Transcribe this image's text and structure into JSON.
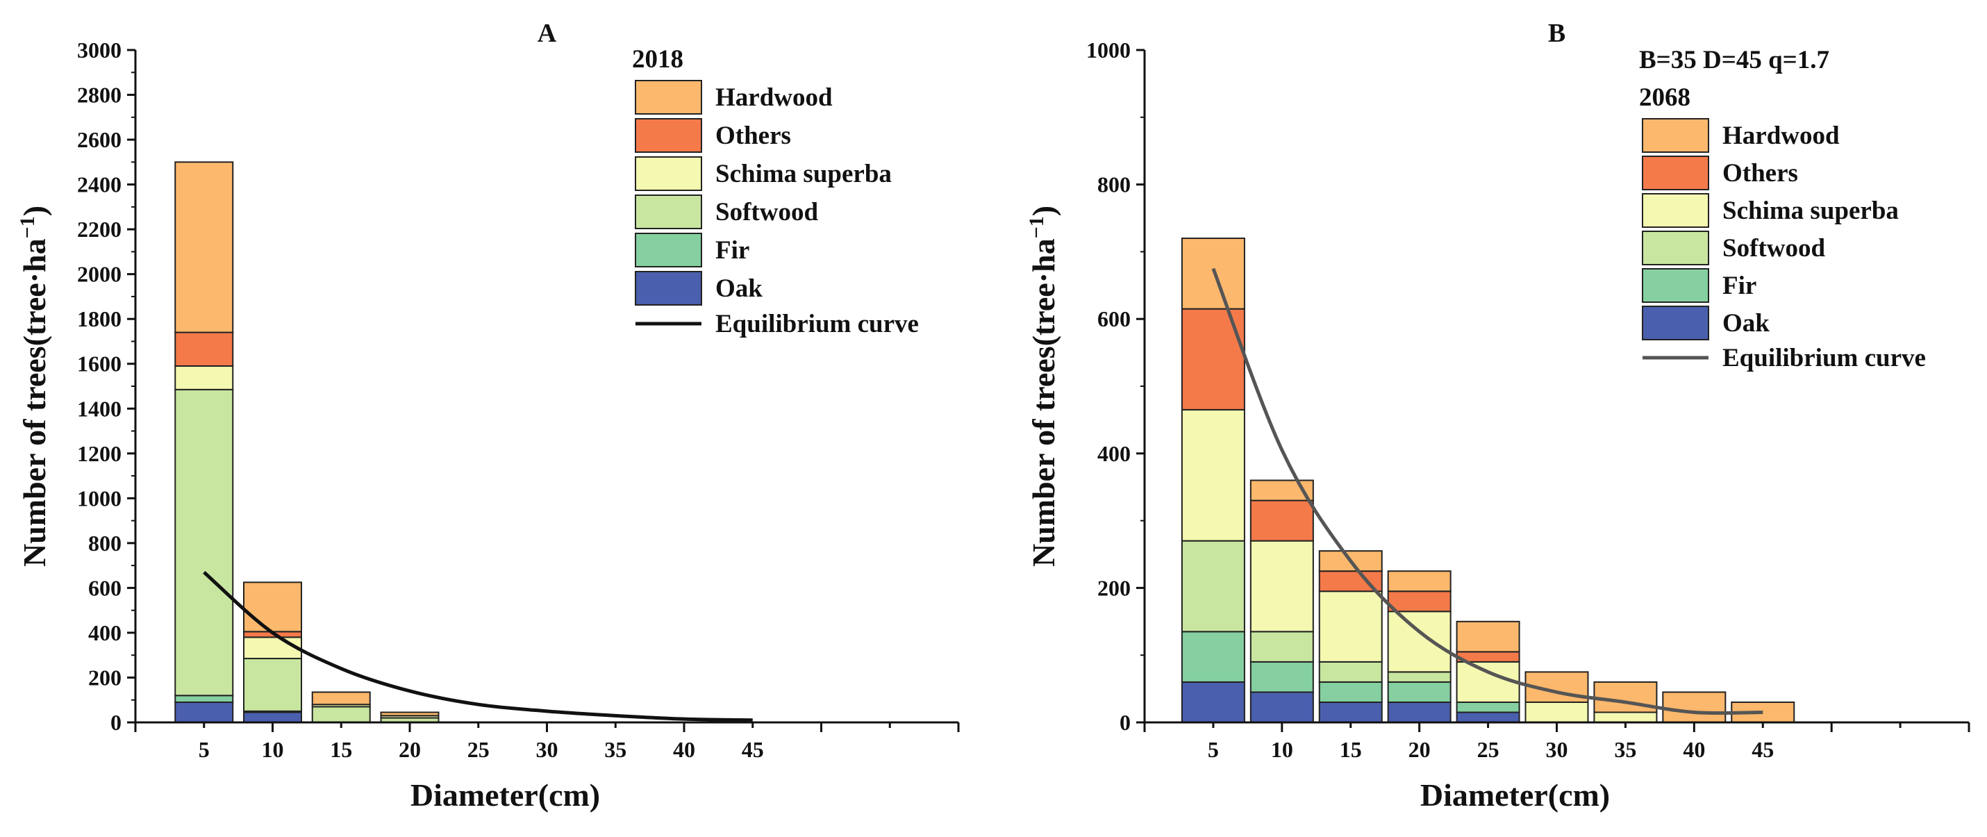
{
  "chart_data": [
    {
      "type": "bar",
      "stacked": true,
      "panel_label": "A",
      "legend_title": "2018",
      "params": "",
      "xlabel": "Diameter(cm)",
      "ylabel_main": "Number of trees(tree·ha",
      "ylabel_sup": "−1",
      "ylabel_end": ")",
      "ylim": [
        0,
        3000
      ],
      "yticks": [
        0,
        200,
        400,
        600,
        800,
        1000,
        1200,
        1400,
        1600,
        1800,
        2000,
        2200,
        2400,
        2600,
        2800,
        3000
      ],
      "xlim": [
        0,
        60
      ],
      "xticks": [
        5,
        10,
        15,
        20,
        25,
        30,
        35,
        40,
        45
      ],
      "categories": [
        5,
        10,
        15,
        20
      ],
      "series": [
        {
          "name": "Oak",
          "color": "#4a5fad",
          "values": [
            90,
            45,
            0,
            0
          ]
        },
        {
          "name": "Fir",
          "color": "#85cfa0",
          "values": [
            30,
            5,
            0,
            0
          ]
        },
        {
          "name": "Softwood",
          "color": "#c8e6a0",
          "values": [
            1365,
            235,
            70,
            20
          ]
        },
        {
          "name": "Schima superba",
          "color": "#f4f8b0",
          "values": [
            105,
            95,
            10,
            10
          ]
        },
        {
          "name": "Others",
          "color": "#f47a4a",
          "values": [
            150,
            25,
            0,
            0
          ]
        },
        {
          "name": "Hardwood",
          "color": "#fcb86c",
          "values": [
            760,
            220,
            55,
            15
          ]
        }
      ],
      "equilibrium_curve": {
        "name": "Equilibrium curve",
        "color": "#111111",
        "x": [
          5,
          10,
          15,
          20,
          25,
          30,
          35,
          40,
          45
        ],
        "y": [
          670,
          400,
          240,
          140,
          80,
          50,
          30,
          15,
          10
        ]
      }
    },
    {
      "type": "bar",
      "stacked": true,
      "panel_label": "B",
      "legend_title": "2068",
      "params": "B=35 D=45 q=1.7",
      "xlabel": "Diameter(cm)",
      "ylabel_main": "Number of trees(tree·ha",
      "ylabel_sup": "−1",
      "ylabel_end": ")",
      "ylim": [
        0,
        1000
      ],
      "yticks": [
        0,
        200,
        400,
        600,
        800,
        1000
      ],
      "xlim": [
        0,
        60
      ],
      "xticks": [
        5,
        10,
        15,
        20,
        25,
        30,
        35,
        40,
        45
      ],
      "categories": [
        5,
        10,
        15,
        20,
        25,
        30,
        35,
        40,
        45
      ],
      "series": [
        {
          "name": "Oak",
          "color": "#4a5fad",
          "values": [
            60,
            45,
            30,
            30,
            15,
            0,
            0,
            0,
            0
          ]
        },
        {
          "name": "Fir",
          "color": "#85cfa0",
          "values": [
            75,
            45,
            30,
            30,
            15,
            0,
            0,
            0,
            0
          ]
        },
        {
          "name": "Softwood",
          "color": "#c8e6a0",
          "values": [
            135,
            45,
            30,
            15,
            0,
            0,
            0,
            0,
            0
          ]
        },
        {
          "name": "Schima superba",
          "color": "#f4f8b0",
          "values": [
            195,
            135,
            105,
            90,
            60,
            30,
            15,
            0,
            0
          ]
        },
        {
          "name": "Others",
          "color": "#f47a4a",
          "values": [
            150,
            60,
            30,
            30,
            15,
            0,
            0,
            0,
            0
          ]
        },
        {
          "name": "Hardwood",
          "color": "#fcb86c",
          "values": [
            105,
            30,
            30,
            30,
            45,
            45,
            45,
            45,
            30
          ]
        }
      ],
      "equilibrium_curve": {
        "name": "Equilibrium curve",
        "color": "#555555",
        "x": [
          5,
          10,
          15,
          20,
          25,
          30,
          35,
          40,
          45
        ],
        "y": [
          675,
          405,
          240,
          135,
          75,
          45,
          30,
          15,
          15
        ]
      }
    }
  ]
}
